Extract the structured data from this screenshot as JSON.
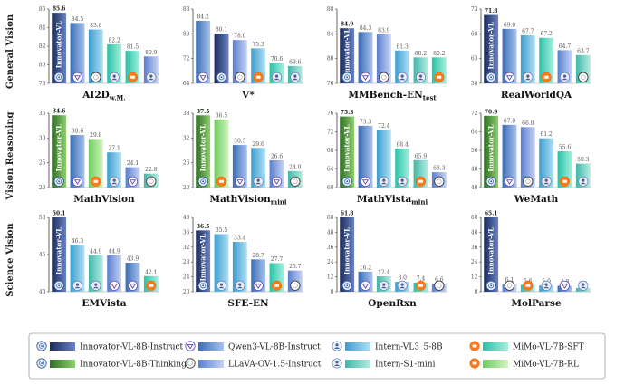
{
  "row_titles": [
    "General Vision",
    "Vision Reasoning",
    "Science Vision"
  ],
  "bar_text": "Innovator-VL",
  "colors": {
    "innovator_instruct": [
      "#1a2a5a",
      "#6a83c4"
    ],
    "innovator_thinking": [
      "#2e6e22",
      "#8fcf6e"
    ],
    "qwen": [
      "#3a6db8",
      "#a9c3ec"
    ],
    "llava": [
      "#5a7ed0",
      "#c7d4f4"
    ],
    "intern": [
      "#3a9ed2",
      "#b2e0f2"
    ],
    "intern_s1": [
      "#3fb8a8",
      "#b6ece2"
    ],
    "mimo_sft": [
      "#28c2a6",
      "#a6f0de"
    ],
    "mimo_rl": [
      "#6ccc5e",
      "#d4f4c2"
    ]
  },
  "legend": [
    {
      "label": "Innovator-VL-8B-Instruct",
      "icon": "innovator-logo-icon",
      "color_key": "innovator_instruct"
    },
    {
      "label": "Innovator-VL-8B-Thinking",
      "icon": "innovator-logo-icon",
      "color_key": "innovator_thinking"
    },
    {
      "label": "Qwen3-VL-8B-Instruct",
      "icon": "qwen-logo-icon",
      "color_key": "qwen"
    },
    {
      "label": "LLaVA-OV-1.5-Instruct",
      "icon": "llava-logo-icon",
      "color_key": "llava"
    },
    {
      "label": "Intern-VL3_5-8B",
      "icon": "intern-logo-icon",
      "color_key": "intern"
    },
    {
      "label": "Intern-S1-mini",
      "icon": "intern-logo-icon",
      "color_key": "intern_s1"
    },
    {
      "label": "MiMo-VL-7B-SFT",
      "icon": "mimo-logo-icon",
      "color_key": "mimo_sft"
    },
    {
      "label": "MiMo-VL-7B-RL",
      "icon": "mimo-logo-icon",
      "color_key": "mimo_rl"
    }
  ],
  "chart_data": [
    {
      "type": "bar",
      "title": "AI2D",
      "title_sub": "w.M.",
      "row": 0,
      "col": 0,
      "ylim": [
        78,
        86
      ],
      "yticks": [
        78,
        80,
        82,
        84,
        86
      ],
      "models": [
        "innovator_instruct",
        "qwen",
        "intern",
        "mimo_sft",
        "mimo_sft",
        "llava"
      ],
      "icons": [
        "innovator-logo-icon",
        "qwen-logo-icon",
        "llava-logo-icon",
        "intern-logo-icon",
        "mimo-logo-icon",
        "intern-logo-icon"
      ],
      "values": [
        85.6,
        84.5,
        83.8,
        82.2,
        81.5,
        80.9
      ],
      "labels": [
        "85.6",
        "84.5",
        "83.8",
        "82.2",
        "81.5",
        "80.9"
      ]
    },
    {
      "type": "bar",
      "title": "V*",
      "title_sub": "",
      "row": 0,
      "col": 1,
      "ylim": [
        64,
        88
      ],
      "yticks": [
        64,
        72,
        80,
        88
      ],
      "models": [
        "qwen",
        "innovator_instruct",
        "llava",
        "intern",
        "mimo_sft",
        "intern_s1"
      ],
      "icons": [
        "qwen-logo-icon",
        "innovator-logo-icon",
        "llava-logo-icon",
        "mimo-logo-icon",
        "intern-logo-icon",
        "intern-logo-icon"
      ],
      "values": [
        84.2,
        80.1,
        78.0,
        75.3,
        70.6,
        69.6
      ],
      "labels": [
        "84.2",
        "80.1",
        "78.0",
        "75.3",
        "70.6",
        "69.6"
      ]
    },
    {
      "type": "bar",
      "title": "MMBench-EN",
      "title_sub": "test",
      "row": 0,
      "col": 2,
      "ylim": [
        76,
        88
      ],
      "yticks": [
        76,
        80,
        84,
        88
      ],
      "models": [
        "innovator_instruct",
        "qwen",
        "llava",
        "intern",
        "intern_s1",
        "mimo_sft"
      ],
      "icons": [
        "innovator-logo-icon",
        "qwen-logo-icon",
        "llava-logo-icon",
        "intern-logo-icon",
        "intern-logo-icon",
        "mimo-logo-icon"
      ],
      "values": [
        84.9,
        84.3,
        83.9,
        81.3,
        80.2,
        80.2
      ],
      "labels": [
        "84.9",
        "84.3",
        "83.9",
        "81.3",
        "80.2",
        "80.2"
      ]
    },
    {
      "type": "bar",
      "title": "RealWorldQA",
      "title_sub": "",
      "row": 0,
      "col": 3,
      "ylim": [
        58,
        73
      ],
      "yticks": [
        58,
        63,
        68,
        73
      ],
      "models": [
        "innovator_instruct",
        "qwen",
        "intern",
        "mimo_sft",
        "llava",
        "intern_s1"
      ],
      "icons": [
        "innovator-logo-icon",
        "qwen-logo-icon",
        "intern-logo-icon",
        "mimo-logo-icon",
        "intern-logo-icon",
        "llava-logo-icon"
      ],
      "values": [
        71.8,
        69.0,
        67.7,
        67.2,
        64.7,
        63.7
      ],
      "labels": [
        "71.8",
        "69.0",
        "67.7",
        "67.2",
        "64.7",
        "63.7"
      ]
    },
    {
      "type": "bar",
      "title": "MathVision",
      "title_sub": "",
      "row": 1,
      "col": 0,
      "ylim": [
        20,
        35
      ],
      "yticks": [
        20,
        25,
        30,
        35
      ],
      "models": [
        "innovator_thinking",
        "qwen",
        "mimo_rl",
        "intern",
        "llava",
        "intern_s1"
      ],
      "icons": [
        "innovator-logo-icon",
        "qwen-logo-icon",
        "mimo-logo-icon",
        "intern-logo-icon",
        "qwen-logo-icon",
        "llava-logo-icon"
      ],
      "values": [
        34.6,
        30.6,
        29.8,
        27.1,
        24.1,
        22.8
      ],
      "labels": [
        "34.6",
        "30.6",
        "29.8",
        "27.1",
        "24.1",
        "22.8"
      ]
    },
    {
      "type": "bar",
      "title": "MathVision",
      "title_sub": "mini",
      "row": 1,
      "col": 1,
      "ylim": [
        20,
        38
      ],
      "yticks": [
        20,
        26,
        32,
        38
      ],
      "models": [
        "innovator_thinking",
        "mimo_rl",
        "qwen",
        "intern",
        "llava",
        "intern_s1"
      ],
      "icons": [
        "innovator-logo-icon",
        "mimo-logo-icon",
        "qwen-logo-icon",
        "intern-logo-icon",
        "qwen-logo-icon",
        "llava-logo-icon"
      ],
      "values": [
        37.5,
        36.5,
        30.3,
        29.6,
        26.6,
        24.0
      ],
      "labels": [
        "37.5",
        "36.5",
        "30.3",
        "29.6",
        "26.6",
        "24.0"
      ]
    },
    {
      "type": "bar",
      "title": "MathVista",
      "title_sub": "mini",
      "row": 1,
      "col": 2,
      "ylim": [
        60,
        76
      ],
      "yticks": [
        60,
        64,
        68,
        72,
        76
      ],
      "models": [
        "innovator_thinking",
        "qwen",
        "intern",
        "mimo_sft",
        "intern_s1",
        "llava"
      ],
      "icons": [
        "innovator-logo-icon",
        "qwen-logo-icon",
        "intern-logo-icon",
        "intern-logo-icon",
        "mimo-logo-icon",
        "llava-logo-icon"
      ],
      "values": [
        75.3,
        73.3,
        72.4,
        68.4,
        65.9,
        63.3
      ],
      "labels": [
        "75.3",
        "73.3",
        "72.4",
        "68.4",
        "65.9",
        "63.3"
      ]
    },
    {
      "type": "bar",
      "title": "WeMath",
      "title_sub": "",
      "row": 1,
      "col": 3,
      "ylim": [
        40,
        72
      ],
      "yticks": [
        40,
        48,
        56,
        64,
        72
      ],
      "models": [
        "innovator_thinking",
        "qwen",
        "llava",
        "intern",
        "mimo_sft",
        "intern_s1"
      ],
      "icons": [
        "innovator-logo-icon",
        "qwen-logo-icon",
        "llava-logo-icon",
        "intern-logo-icon",
        "mimo-logo-icon",
        "intern-logo-icon"
      ],
      "values": [
        70.9,
        67.0,
        66.0,
        61.2,
        55.6,
        50.3
      ],
      "labels": [
        "70.9",
        "67.0",
        "66.0",
        "61.2",
        "55.6",
        "50.3"
      ]
    },
    {
      "type": "bar",
      "title": "EMVista",
      "title_sub": "",
      "row": 2,
      "col": 0,
      "ylim": [
        40,
        50
      ],
      "yticks": [
        40,
        45,
        50
      ],
      "models": [
        "innovator_instruct",
        "intern",
        "intern_s1",
        "llava",
        "qwen",
        "mimo_sft"
      ],
      "icons": [
        "innovator-logo-icon",
        "intern-logo-icon",
        "intern-logo-icon",
        "qwen-logo-icon",
        "qwen-logo-icon",
        "mimo-logo-icon"
      ],
      "values": [
        50.1,
        46.3,
        44.9,
        44.9,
        43.9,
        42.1
      ],
      "labels": [
        "50.1",
        "46.3",
        "44.9",
        "44.9",
        "43.9",
        "42.1"
      ]
    },
    {
      "type": "bar",
      "title": "SFE-EN",
      "title_sub": "",
      "row": 2,
      "col": 1,
      "ylim": [
        20,
        40
      ],
      "yticks": [
        20,
        24,
        28,
        32,
        36,
        40
      ],
      "models": [
        "innovator_instruct",
        "intern",
        "intern",
        "qwen",
        "mimo_sft",
        "llava"
      ],
      "icons": [
        "innovator-logo-icon",
        "intern-logo-icon",
        "intern-logo-icon",
        "qwen-logo-icon",
        "mimo-logo-icon",
        "llava-logo-icon"
      ],
      "values": [
        36.5,
        35.5,
        33.4,
        28.7,
        27.7,
        25.7
      ],
      "labels": [
        "36.5",
        "35.5",
        "33.4",
        "28.7",
        "27.7",
        "25.7"
      ]
    },
    {
      "type": "bar",
      "title": "OpenRxn",
      "title_sub": "",
      "row": 2,
      "col": 2,
      "ylim": [
        0,
        60
      ],
      "yticks": [
        0,
        12,
        24,
        36,
        48,
        60
      ],
      "models": [
        "innovator_instruct",
        "qwen",
        "intern_s1",
        "intern",
        "mimo_sft",
        "llava"
      ],
      "icons": [
        "innovator-logo-icon",
        "qwen-logo-icon",
        "intern-logo-icon",
        "intern-logo-icon",
        "mimo-logo-icon",
        "llava-logo-icon"
      ],
      "values": [
        61.8,
        16.2,
        12.4,
        8.0,
        7.4,
        6.6
      ],
      "labels": [
        "61.8",
        "16.2",
        "12.4",
        "8.0",
        "7.4",
        "6.6"
      ]
    },
    {
      "type": "bar",
      "title": "MolParse",
      "title_sub": "",
      "row": 2,
      "col": 3,
      "ylim": [
        0,
        60
      ],
      "yticks": [
        0,
        12,
        24,
        36,
        48,
        60
      ],
      "models": [
        "innovator_instruct",
        "llava",
        "mimo_sft",
        "intern",
        "qwen",
        "intern_s1"
      ],
      "icons": [
        "innovator-logo-icon",
        "llava-logo-icon",
        "mimo-logo-icon",
        "intern-logo-icon",
        "qwen-logo-icon",
        "intern-logo-icon"
      ],
      "values": [
        65.1,
        6.1,
        5.6,
        5.0,
        4.8,
        3.0
      ],
      "labels": [
        "65.1",
        "6.1",
        "5.6",
        "5.0",
        "4.8",
        "3.0"
      ]
    }
  ]
}
